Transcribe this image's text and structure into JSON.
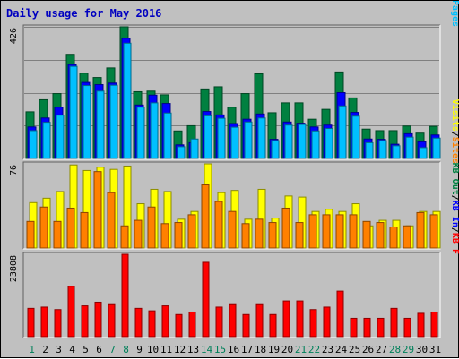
{
  "chart_data": {
    "type": "bar",
    "title": "Daily usage for May 2016",
    "days": [
      "1",
      "2",
      "3",
      "4",
      "5",
      "6",
      "7",
      "8",
      "9",
      "10",
      "11",
      "12",
      "13",
      "14",
      "15",
      "16",
      "17",
      "18",
      "19",
      "20",
      "21",
      "22",
      "23",
      "24",
      "25",
      "26",
      "27",
      "28",
      "29",
      "30",
      "31"
    ],
    "weekend_days": [
      "1",
      "7",
      "8",
      "14",
      "15",
      "21",
      "22",
      "28",
      "29"
    ],
    "panels": [
      {
        "name": "hits-files-pages",
        "ymax_label": "426",
        "ymax": 426,
        "legend": [
          {
            "text": "Pages",
            "color": "#00c0ff"
          },
          {
            "text": "/",
            "color": "#000000"
          },
          {
            "text": "Files",
            "color": "#0000ff"
          },
          {
            "text": "/",
            "color": "#000000"
          },
          {
            "text": "Hits",
            "color": "#008040"
          }
        ],
        "series": [
          {
            "name": "Hits",
            "color": "#008040",
            "values": [
              151,
              190,
              210,
              337,
              276,
              262,
              293,
              426,
              216,
              218,
              206,
              89,
              106,
              225,
              232,
              166,
              210,
              274,
              148,
              180,
              180,
              127,
              159,
              280,
              196,
              95,
              90,
              90,
              105,
              82,
              104
            ]
          },
          {
            "name": "Files",
            "color": "#0000ff",
            "values": [
              102,
              131,
              166,
              304,
              246,
              239,
              244,
              389,
              173,
              205,
              178,
              44,
              51,
              152,
              141,
              113,
              127,
              144,
              62,
              118,
              114,
              102,
              108,
              213,
              149,
              63,
              62,
              46,
              80,
              54,
              76
            ]
          },
          {
            "name": "Pages",
            "color": "#00c0ff",
            "values": [
              90,
              117,
              140,
              298,
              236,
              218,
              237,
              373,
              166,
              180,
              147,
              38,
              63,
              138,
              130,
              101,
              118,
              131,
              58,
              108,
              110,
              89,
              97,
              170,
              137,
              51,
              58,
              41,
              69,
              35,
              66
            ]
          }
        ]
      },
      {
        "name": "visits-sites",
        "ymax_label": "76",
        "ymax": 76,
        "legend": [
          {
            "text": "Sites",
            "color": "#ff8000"
          },
          {
            "text": "/",
            "color": "#000000"
          },
          {
            "text": "Visits",
            "color": "#ffff00"
          }
        ],
        "series": [
          {
            "name": "Visits",
            "color": "#ffff00",
            "values": [
              41,
              45,
              51,
              75,
              70,
              73,
              71,
              74,
              40,
              53,
              51,
              26,
              33,
              76,
              50,
              52,
              26,
              53,
              27,
              47,
              46,
              33,
              35,
              33,
              40,
              20,
              25,
              25,
              20,
              33,
              33
            ]
          },
          {
            "name": "Sites",
            "color": "#ff8000",
            "values": [
              24,
              37,
              24,
              36,
              32,
              69,
              50,
              20,
              25,
              37,
              22,
              23,
              30,
              57,
              42,
              33,
              22,
              26,
              23,
              36,
              23,
              30,
              30,
              30,
              30,
              24,
              23,
              19,
              20,
              32,
              30
            ]
          }
        ]
      },
      {
        "name": "kbytes",
        "ymax_label": "23808",
        "ymax": 23808,
        "legend": [
          {
            "text": "KB F",
            "color": "#ff0000"
          },
          {
            "text": "/",
            "color": "#000000"
          },
          {
            "text": "KB In",
            "color": "#0000ff"
          },
          {
            "text": "/",
            "color": "#000000"
          },
          {
            "text": "KB Out",
            "color": "#008040"
          }
        ],
        "series": [
          {
            "name": "KB F",
            "color": "#ff0000",
            "values": [
              8190,
              8550,
              7830,
              14570,
              8910,
              9970,
              9260,
              23808,
              8190,
              7470,
              8910,
              6400,
              7120,
              21490,
              8550,
              9260,
              6400,
              9260,
              6400,
              10330,
              10330,
              7830,
              8550,
              13170,
              5320,
              5320,
              5320,
              8190,
              5320,
              6750,
              7120
            ]
          }
        ]
      }
    ]
  }
}
